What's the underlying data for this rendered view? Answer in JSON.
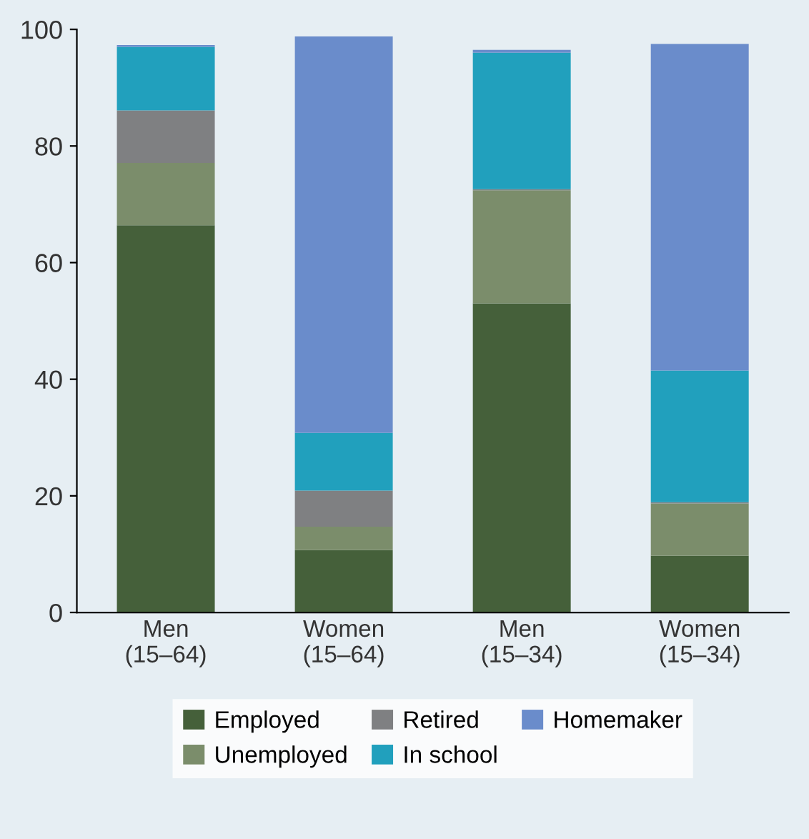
{
  "chart_data": {
    "type": "bar",
    "stacked": true,
    "categories": [
      "Men\n(15–64)",
      "Women\n(15–64)",
      "Men\n(15–34)",
      "Women\n(15–34)"
    ],
    "series": [
      {
        "name": "Employed",
        "color": "#45603a",
        "values": [
          66.4,
          10.7,
          53.0,
          9.7
        ]
      },
      {
        "name": "Unemployed",
        "color": "#7b8d6b",
        "values": [
          10.7,
          4.0,
          19.4,
          9.0
        ]
      },
      {
        "name": "Retired",
        "color": "#7f8082",
        "values": [
          9.0,
          6.2,
          0.2,
          0.2
        ]
      },
      {
        "name": "In school",
        "color": "#21a0bd",
        "values": [
          10.9,
          9.9,
          23.4,
          22.6
        ]
      },
      {
        "name": "Homemaker",
        "color": "#6a8ccb",
        "values": [
          0.3,
          68.0,
          0.5,
          56.0
        ]
      }
    ],
    "ylim": [
      0,
      100
    ],
    "yticks": [
      0,
      20,
      40,
      60,
      80,
      100
    ],
    "grid": false,
    "legend": "bottom"
  }
}
